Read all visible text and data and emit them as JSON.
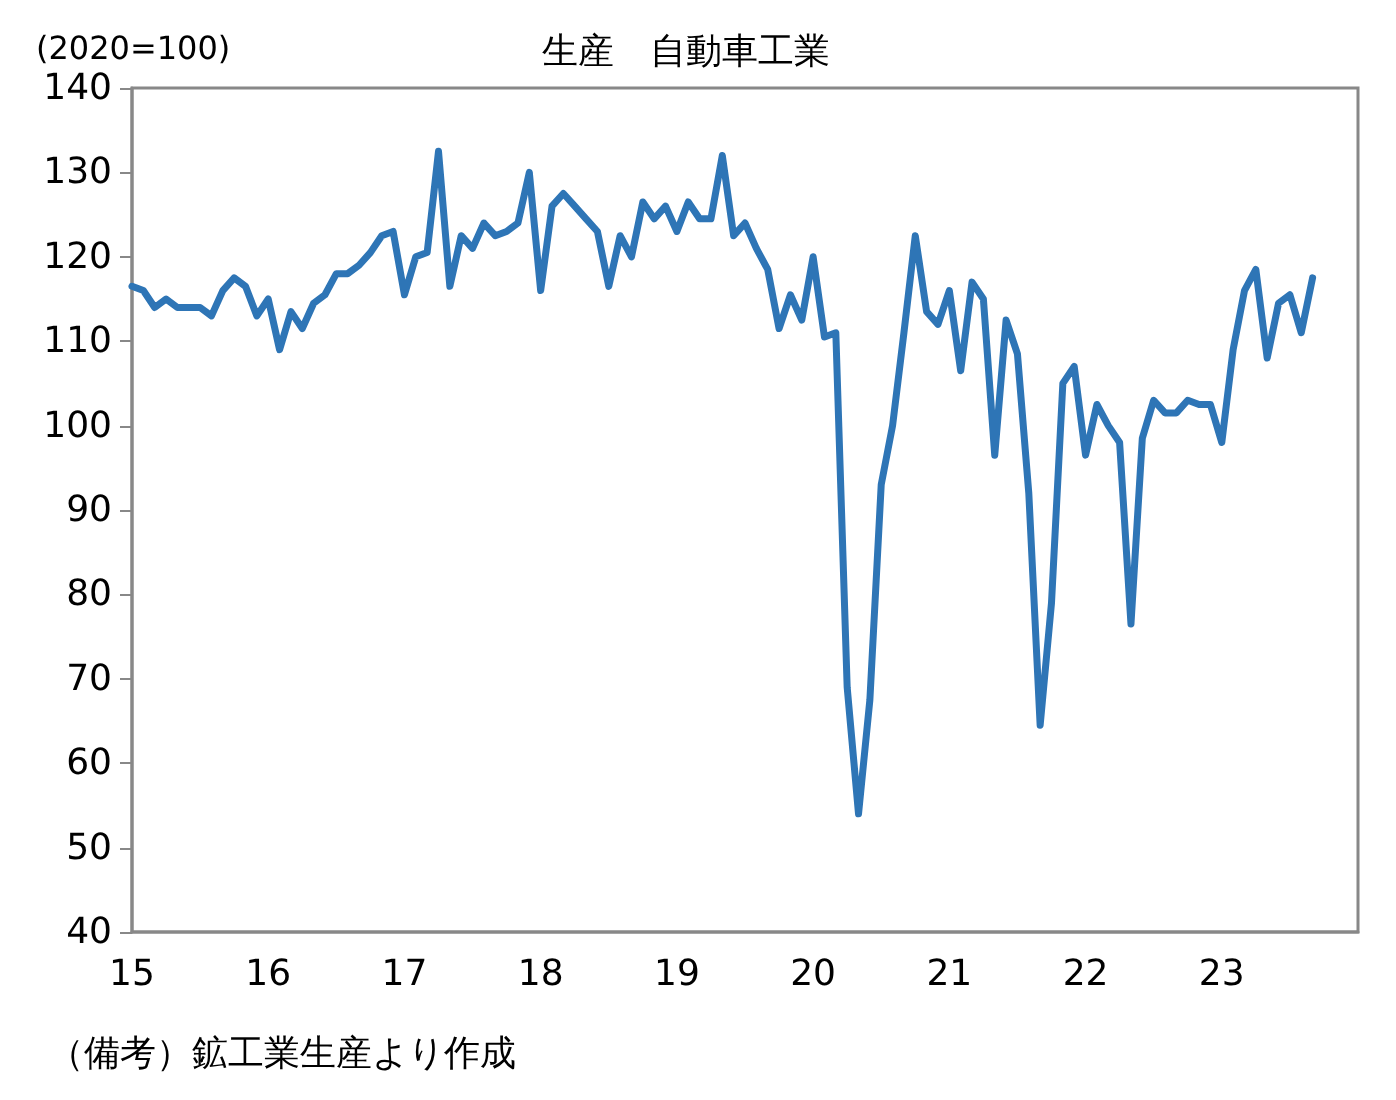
{
  "chart_data": {
    "type": "line",
    "title": "生産　自動車工業",
    "ylabel": "(2020=100)",
    "annotations": [
      "（備考）鉱工業生産より作成"
    ],
    "categories": [
      "15",
      null,
      null,
      null,
      null,
      null,
      null,
      null,
      null,
      null,
      null,
      null,
      "16",
      null,
      null,
      null,
      null,
      null,
      null,
      null,
      null,
      null,
      null,
      null,
      "17",
      null,
      null,
      null,
      null,
      null,
      null,
      null,
      null,
      null,
      null,
      null,
      "18",
      null,
      null,
      null,
      null,
      null,
      null,
      null,
      null,
      null,
      null,
      null,
      "19",
      null,
      null,
      null,
      null,
      null,
      null,
      null,
      null,
      null,
      null,
      null,
      "20",
      null,
      null,
      null,
      null,
      null,
      null,
      null,
      null,
      null,
      null,
      null,
      "21",
      null,
      null,
      null,
      null,
      null,
      null,
      null,
      null,
      null,
      null,
      null,
      "22",
      null,
      null,
      null,
      null,
      null,
      null,
      null,
      null,
      null,
      null,
      null,
      "23",
      null,
      null,
      null,
      null,
      null,
      null,
      null,
      null,
      null,
      null,
      null,
      null
    ],
    "series": [
      {
        "color": "#2e75b6",
        "values": [
          116.5,
          116,
          114,
          115,
          114,
          114,
          114,
          113,
          116,
          117.5,
          116.5,
          113,
          115,
          109,
          113.5,
          111.5,
          114.5,
          115.5,
          118,
          118,
          119,
          120.5,
          122.5,
          123,
          115.5,
          120,
          120.5,
          132.5,
          116.5,
          122.5,
          121,
          124,
          122.5,
          123,
          124,
          130,
          116,
          126,
          127.5,
          126,
          124.5,
          123,
          116.5,
          122.5,
          120,
          126.5,
          124.5,
          126,
          123,
          126.5,
          124.5,
          124.5,
          132,
          122.5,
          124,
          121,
          118.5,
          111.5,
          115.5,
          112.5,
          120,
          110.5,
          111,
          69,
          54,
          67.5,
          93,
          100,
          111,
          122.5,
          113.5,
          112,
          116,
          106.5,
          117,
          115,
          96.5,
          112.5,
          108.5,
          92,
          64.5,
          79,
          105,
          107,
          96.5,
          102.5,
          100,
          98,
          76.5,
          98.5,
          103,
          101.5,
          101.5,
          103,
          102.5,
          102.5,
          98,
          109,
          116,
          118.5,
          108,
          114.5,
          115.5,
          111,
          117.5,
          null,
          null,
          null,
          null
        ]
      }
    ],
    "ylim": [
      40,
      140
    ],
    "yticks": [
      40,
      50,
      60,
      70,
      80,
      90,
      100,
      110,
      120,
      130,
      140
    ],
    "grid": false,
    "marker": "none",
    "line_style": "solid"
  }
}
